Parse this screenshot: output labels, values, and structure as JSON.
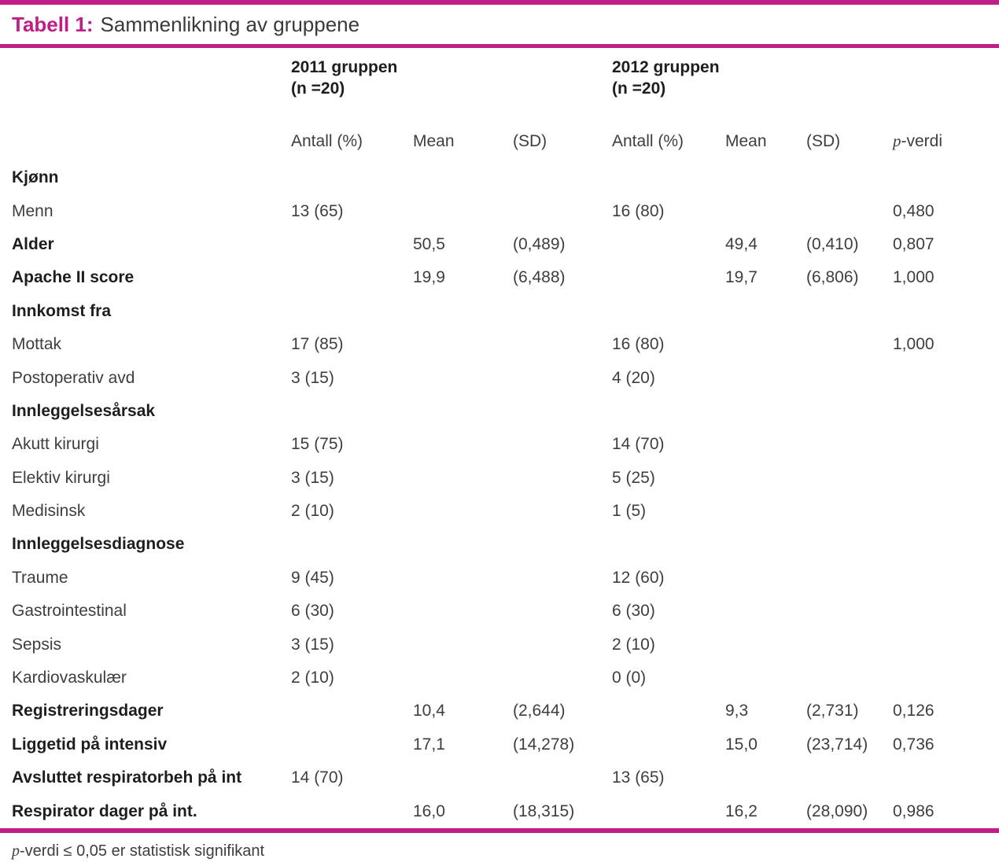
{
  "title": {
    "prefix": "Tabell 1:",
    "text": "Sammenlikning av gruppene"
  },
  "colors": {
    "accent": "#c01d86",
    "bold_text": "#1e1e1c",
    "body_text": "#3e3e3d"
  },
  "groups": [
    {
      "name": "2011 gruppen",
      "n": "(n =20)"
    },
    {
      "name": "2012 gruppen",
      "n": "(n =20)"
    }
  ],
  "columns": [
    {
      "label": "Antall (%)"
    },
    {
      "label": "Mean"
    },
    {
      "label": "(SD)"
    },
    {
      "label": "Antall (%)"
    },
    {
      "label": "Mean"
    },
    {
      "label": "(SD)"
    },
    {
      "label": "p-verdi",
      "p_char": "p",
      "rest": "-verdi"
    }
  ],
  "rows": [
    {
      "label": "Kjønn",
      "bold": true,
      "cells": [
        "",
        "",
        "",
        "",
        "",
        "",
        ""
      ]
    },
    {
      "label": "Menn",
      "bold": false,
      "cells": [
        "13 (65)",
        "",
        "",
        "16 (80)",
        "",
        "",
        "0,480"
      ]
    },
    {
      "label": "Alder",
      "bold": true,
      "cells": [
        "",
        "50,5",
        "(0,489)",
        "",
        "49,4",
        "(0,410)",
        "0,807"
      ]
    },
    {
      "label": "Apache II score",
      "bold": true,
      "cells": [
        "",
        "19,9",
        "(6,488)",
        "",
        "19,7",
        "(6,806)",
        "1,000"
      ]
    },
    {
      "label": "Innkomst fra",
      "bold": true,
      "cells": [
        "",
        "",
        "",
        "",
        "",
        "",
        ""
      ]
    },
    {
      "label": "Mottak",
      "bold": false,
      "cells": [
        "17 (85)",
        "",
        "",
        "16 (80)",
        "",
        "",
        "1,000"
      ]
    },
    {
      "label": "Postoperativ avd",
      "bold": false,
      "cells": [
        "3 (15)",
        "",
        "",
        "4 (20)",
        "",
        "",
        ""
      ]
    },
    {
      "label": "Innleggelsesårsak",
      "bold": true,
      "cells": [
        "",
        "",
        "",
        "",
        "",
        "",
        ""
      ]
    },
    {
      "label": "Akutt kirurgi",
      "bold": false,
      "cells": [
        "15 (75)",
        "",
        "",
        "14 (70)",
        "",
        "",
        ""
      ]
    },
    {
      "label": "Elektiv kirurgi",
      "bold": false,
      "cells": [
        "3 (15)",
        "",
        "",
        "5 (25)",
        "",
        "",
        ""
      ]
    },
    {
      "label": "Medisinsk",
      "bold": false,
      "cells": [
        "2 (10)",
        "",
        "",
        "1 (5)",
        "",
        "",
        ""
      ]
    },
    {
      "label": "Innleggelsesdiagnose",
      "bold": true,
      "cells": [
        "",
        "",
        "",
        "",
        "",
        "",
        ""
      ]
    },
    {
      "label": "Traume",
      "bold": false,
      "cells": [
        "9 (45)",
        "",
        "",
        "12 (60)",
        "",
        "",
        ""
      ]
    },
    {
      "label": "Gastrointestinal",
      "bold": false,
      "cells": [
        "6 (30)",
        "",
        "",
        "6 (30)",
        "",
        "",
        ""
      ]
    },
    {
      "label": "Sepsis",
      "bold": false,
      "cells": [
        "3 (15)",
        "",
        "",
        "2 (10)",
        "",
        "",
        ""
      ]
    },
    {
      "label": "Kardiovaskulær",
      "bold": false,
      "cells": [
        "2 (10)",
        "",
        "",
        "0 (0)",
        "",
        "",
        ""
      ]
    },
    {
      "label": "Registreringsdager",
      "bold": true,
      "cells": [
        "",
        "10,4",
        "(2,644)",
        "",
        "9,3",
        "(2,731)",
        "0,126"
      ]
    },
    {
      "label": "Liggetid på intensiv",
      "bold": true,
      "cells": [
        "",
        "17,1",
        "(14,278)",
        "",
        "15,0",
        "(23,714)",
        "0,736"
      ]
    },
    {
      "label": "Avsluttet respiratorbeh på int",
      "bold": true,
      "cells": [
        "14 (70)",
        "",
        "",
        "13 (65)",
        "",
        "",
        ""
      ]
    },
    {
      "label": "Respirator dager på int.",
      "bold": true,
      "cells": [
        "",
        "16,0",
        "(18,315)",
        "",
        "16,2",
        "(28,090)",
        "0,986"
      ]
    }
  ],
  "footnote": {
    "p_char": "p",
    "rest": "-verdi ≤ 0,05 er statistisk signifikant"
  }
}
